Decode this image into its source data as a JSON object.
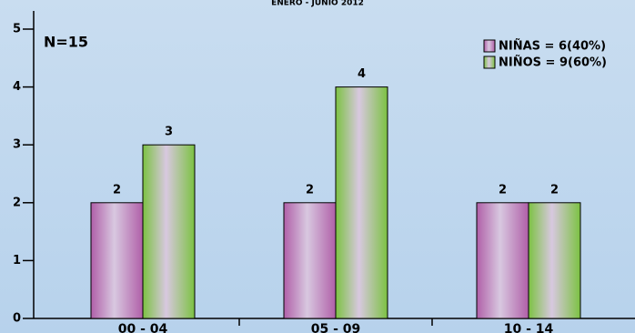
{
  "chart_data": {
    "type": "bar",
    "title": "ENERO - JUNIO 2012",
    "annotation": "N=15",
    "categories": [
      "00 - 04",
      "05 - 09",
      "10 - 14"
    ],
    "series": [
      {
        "name": "NIÑAS = 6(40%)",
        "color": "#b05fa8",
        "values": [
          2,
          2,
          2
        ]
      },
      {
        "name": "NIÑOS = 9(60%)",
        "color": "#7cc242",
        "values": [
          3,
          4,
          2
        ]
      }
    ],
    "ylim": [
      0,
      5
    ],
    "yticks": [
      0,
      1,
      2,
      3,
      4,
      5
    ],
    "legend": "top-right"
  }
}
